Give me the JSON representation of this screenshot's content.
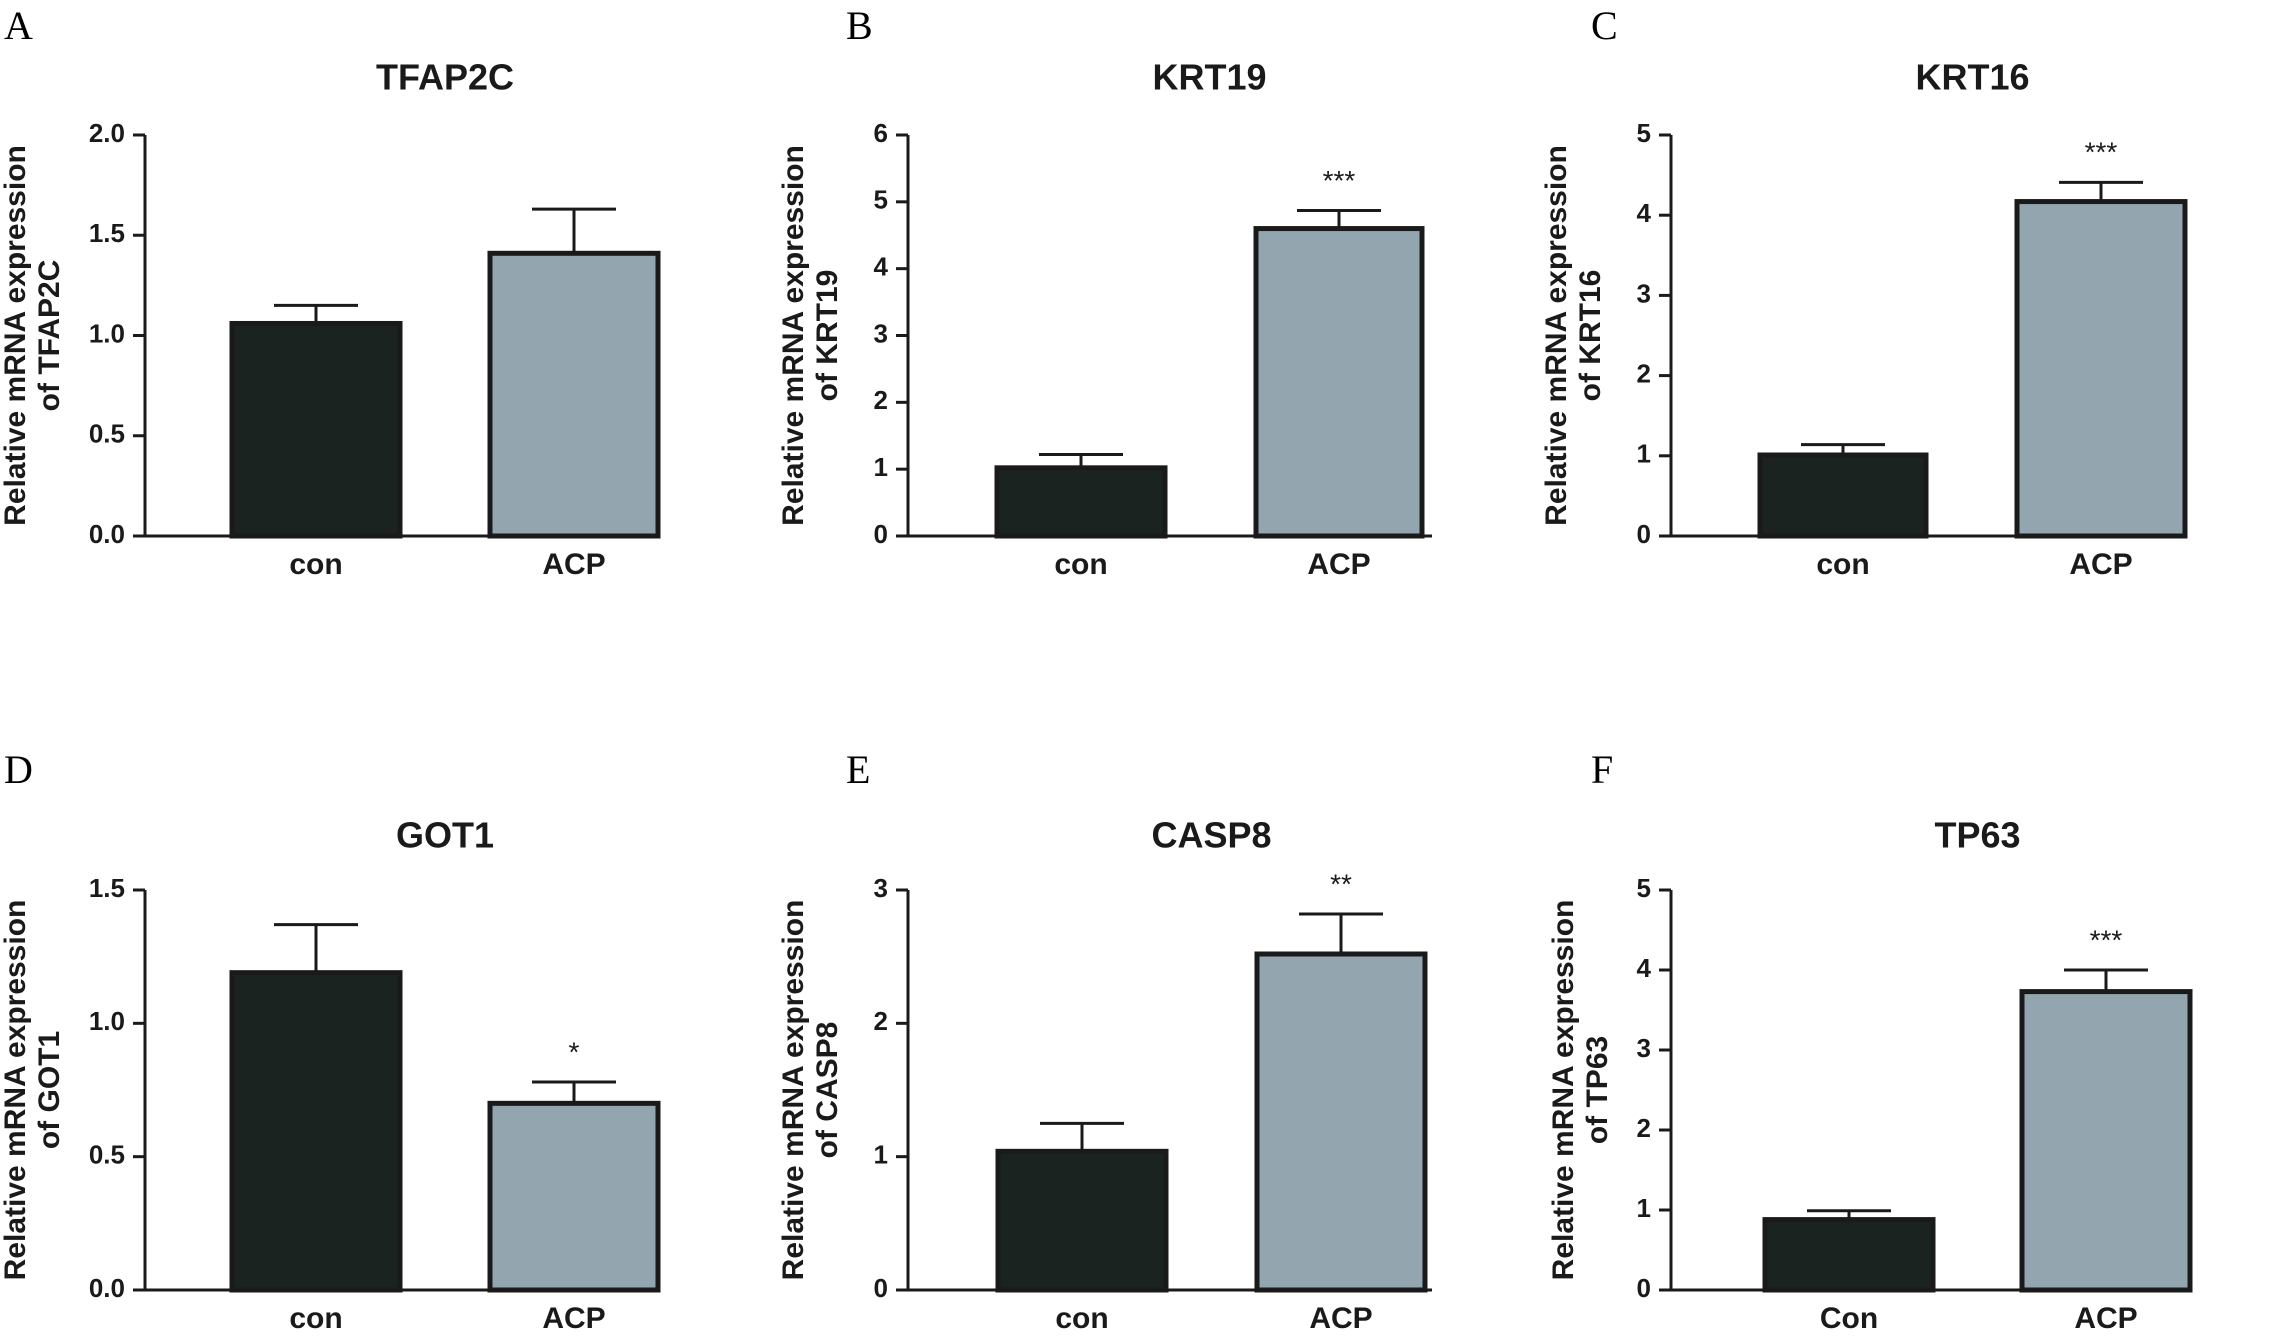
{
  "colors": {
    "con_bar": "#1b2321",
    "acp_bar": "#93a6af",
    "outline": "#1a1a1a"
  },
  "chart_data": [
    {
      "panel": "A",
      "type": "bar",
      "title": "TFAP2C",
      "ylabel_line1": "Relative mRNA expression",
      "ylabel_line2": "of TFAP2C",
      "ylim": [
        0,
        2.0
      ],
      "yticks": [
        "0.0",
        "0.5",
        "1.0",
        "1.5",
        "2.0"
      ],
      "categories": [
        "con",
        "ACP"
      ],
      "values": [
        1.06,
        1.41
      ],
      "errors": [
        0.09,
        0.22
      ],
      "significance": [
        "",
        ""
      ]
    },
    {
      "panel": "B",
      "type": "bar",
      "title": "KRT19",
      "ylabel_line1": "Relative mRNA expression",
      "ylabel_line2": "of KRT19",
      "ylim": [
        0,
        6
      ],
      "yticks": [
        "0",
        "1",
        "2",
        "3",
        "4",
        "5",
        "6"
      ],
      "categories": [
        "con",
        "ACP"
      ],
      "values": [
        1.02,
        4.6
      ],
      "errors": [
        0.2,
        0.27
      ],
      "significance": [
        "",
        "***"
      ]
    },
    {
      "panel": "C",
      "type": "bar",
      "title": "KRT16",
      "ylabel_line1": "Relative mRNA expression",
      "ylabel_line2": "of KRT16",
      "ylim": [
        0,
        5
      ],
      "yticks": [
        "0",
        "1",
        "2",
        "3",
        "4",
        "5"
      ],
      "categories": [
        "con",
        "ACP"
      ],
      "values": [
        1.01,
        4.17
      ],
      "errors": [
        0.13,
        0.24
      ],
      "significance": [
        "",
        "***"
      ]
    },
    {
      "panel": "D",
      "type": "bar",
      "title": "GOT1",
      "ylabel_line1": "Relative mRNA expression",
      "ylabel_line2": "of GOT1",
      "ylim": [
        0,
        1.5
      ],
      "yticks": [
        "0.0",
        "0.5",
        "1.0",
        "1.5"
      ],
      "categories": [
        "con",
        "ACP"
      ],
      "values": [
        1.19,
        0.7
      ],
      "errors": [
        0.18,
        0.08
      ],
      "significance": [
        "",
        "*"
      ]
    },
    {
      "panel": "E",
      "type": "bar",
      "title": "CASP8",
      "ylabel_line1": "Relative mRNA expression",
      "ylabel_line2": "of CASP8",
      "ylim": [
        0,
        3
      ],
      "yticks": [
        "0",
        "1",
        "2",
        "3"
      ],
      "categories": [
        "con",
        "ACP"
      ],
      "values": [
        1.04,
        2.52
      ],
      "errors": [
        0.21,
        0.3
      ],
      "significance": [
        "",
        "**"
      ]
    },
    {
      "panel": "F",
      "type": "bar",
      "title": "TP63",
      "ylabel_line1": "Relative mRNA expression",
      "ylabel_line2": "of TP63",
      "ylim": [
        0,
        5
      ],
      "yticks": [
        "0",
        "1",
        "2",
        "3",
        "4",
        "5"
      ],
      "categories": [
        "Con",
        "ACP"
      ],
      "values": [
        0.88,
        3.73
      ],
      "errors": [
        0.11,
        0.27
      ],
      "significance": [
        "",
        "***"
      ]
    }
  ]
}
